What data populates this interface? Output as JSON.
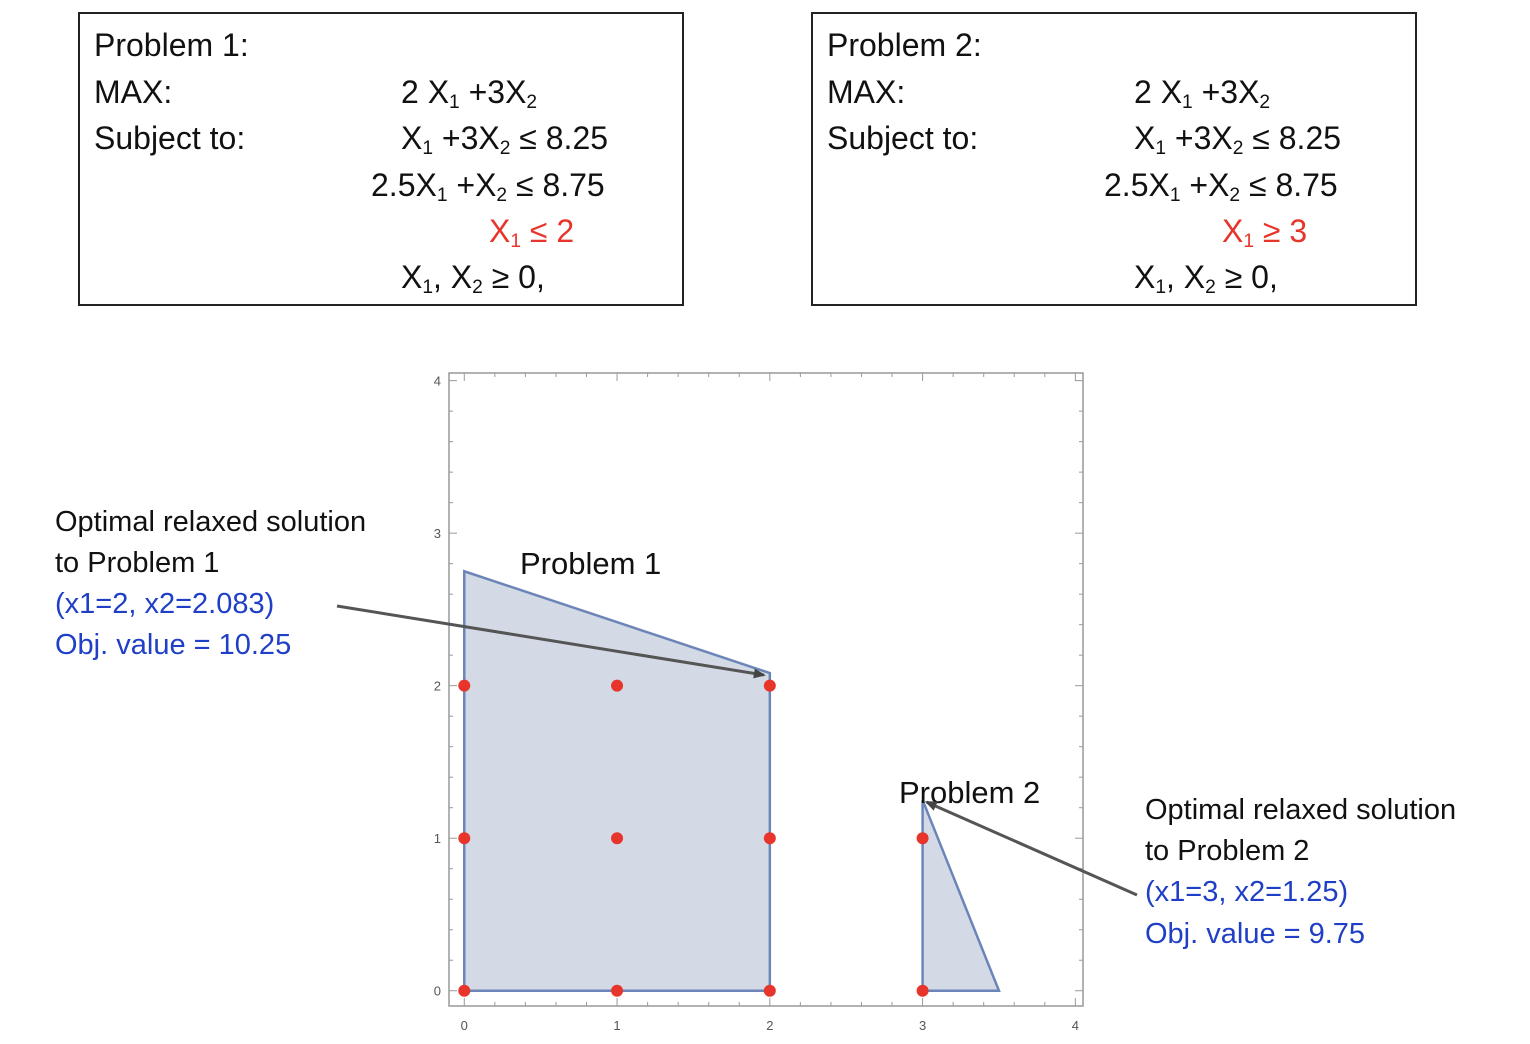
{
  "problems": [
    {
      "title": "Problem 1:",
      "max_label": "MAX:",
      "subject_label": "Subject to:",
      "objective": [
        "2 X",
        "1",
        " +3X",
        "2",
        ""
      ],
      "c1": [
        "X",
        "1",
        " +3X",
        "2",
        " ≤ 8.25"
      ],
      "c2": [
        "2.5X",
        "1",
        " +X",
        "2",
        " ≤ 8.75"
      ],
      "branch": [
        "X",
        "1",
        " ≤ 2"
      ],
      "nonneg": [
        "X",
        "1",
        ", X",
        "2",
        " ≥ 0,"
      ]
    },
    {
      "title": "Problem 2:",
      "max_label": "MAX:",
      "subject_label": "Subject to:",
      "objective": [
        "2 X",
        "1",
        " +3X",
        "2",
        ""
      ],
      "c1": [
        "X",
        "1",
        " +3X",
        "2",
        " ≤ 8.25"
      ],
      "c2": [
        "2.5X",
        "1",
        " +X",
        "2",
        " ≤ 8.75"
      ],
      "branch": [
        "X",
        "1",
        " ≥ 3"
      ],
      "nonneg": [
        "X",
        "1",
        ", X",
        "2",
        " ≥ 0,"
      ]
    }
  ],
  "plot": {
    "xlim": [
      -0.1,
      4.05
    ],
    "ylim": [
      -0.1,
      4.05
    ],
    "xticks": [
      "0",
      "1",
      "2",
      "3",
      "4"
    ],
    "yticks": [
      "0",
      "1",
      "2",
      "3",
      "4"
    ],
    "region1_label": "Problem 1",
    "region2_label": "Problem 2",
    "region1": [
      [
        0,
        0
      ],
      [
        0,
        2.75
      ],
      [
        2,
        2.083
      ],
      [
        2,
        0
      ]
    ],
    "region2": [
      [
        3,
        0
      ],
      [
        3,
        1.25
      ],
      [
        3.5,
        0
      ]
    ],
    "integer_points": [
      [
        0,
        0
      ],
      [
        1,
        0
      ],
      [
        2,
        0
      ],
      [
        0,
        1
      ],
      [
        1,
        1
      ],
      [
        2,
        1
      ],
      [
        0,
        2
      ],
      [
        1,
        2
      ],
      [
        2,
        2
      ],
      [
        3,
        0
      ],
      [
        3,
        1
      ]
    ],
    "optimum1": [
      2,
      2.083
    ],
    "optimum2": [
      3,
      1.25
    ],
    "colors": {
      "fill": "#d3dae6",
      "edge": "#6b85b8",
      "point": "#e8352b",
      "arrow": "#555555",
      "frame": "#999999"
    }
  },
  "annotations": {
    "left": {
      "line1": "Optimal relaxed solution",
      "line2": "to Problem 1",
      "line3": "(x1=2, x2=2.083)",
      "line4": "Obj. value = 10.25"
    },
    "right": {
      "line1": "Optimal relaxed solution",
      "line2": "to Problem 2",
      "line3": "(x1=3, x2=1.25)",
      "line4": "Obj. value = 9.75"
    }
  }
}
